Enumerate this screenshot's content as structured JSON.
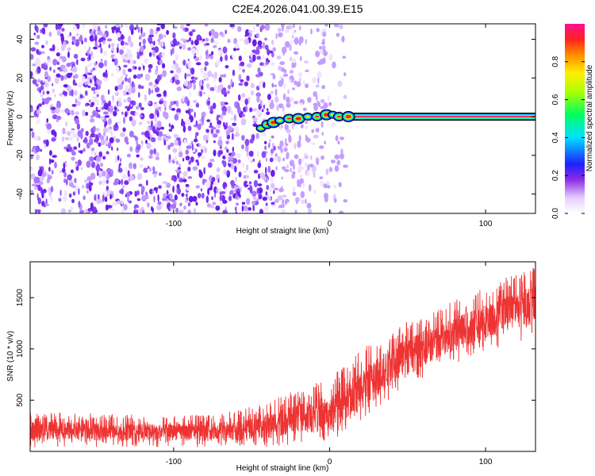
{
  "figure_title": "C2E4.2026.041.00.39.E15",
  "chart_data": [
    {
      "type": "heatmap",
      "title": "C2E4.2026.041.00.39.E15",
      "xlabel": "Height of straight line (km)",
      "ylabel": "Frequency (Hz)",
      "xlim": [
        -192,
        132
      ],
      "ylim": [
        -50,
        48
      ],
      "xticks": [
        -100,
        0,
        100
      ],
      "xtick_labels": [
        "-100",
        "0",
        "100"
      ],
      "yticks": [
        -40,
        -20,
        0,
        20,
        40
      ],
      "ytick_labels": [
        "-40",
        "-20",
        "0",
        "20",
        "40"
      ],
      "colorbar": {
        "label": "Normalized spectral amplitude",
        "range": [
          0,
          1
        ],
        "ticks": [
          0.0,
          0.2,
          0.4,
          0.6,
          0.8
        ],
        "tick_labels": [
          "0.0",
          "0.2",
          "0.4",
          "0.6",
          "0.8"
        ]
      },
      "features": {
        "noise_region_x": [
          -192,
          -35
        ],
        "noise_fade_x": [
          -35,
          12
        ],
        "noise_amplitude": [
          0.1,
          0.4
        ],
        "signal_band_x": [
          -45,
          132
        ],
        "signal_center_freq": 0,
        "signal_amplitude": 0.95,
        "signal_onset_points": [
          {
            "x": -44,
            "y": -6
          },
          {
            "x": -40,
            "y": -4
          },
          {
            "x": -36,
            "y": -3
          },
          {
            "x": -32,
            "y": -2
          },
          {
            "x": -26,
            "y": -1
          },
          {
            "x": -20,
            "y": -1
          },
          {
            "x": -14,
            "y": 0
          },
          {
            "x": -8,
            "y": 0
          },
          {
            "x": -2,
            "y": 1
          },
          {
            "x": 2,
            "y": 1
          },
          {
            "x": 6,
            "y": 0
          },
          {
            "x": 12,
            "y": 0
          }
        ]
      }
    },
    {
      "type": "line",
      "xlabel": "Height of straight line (km)",
      "ylabel": "SNR (10 * v/v)",
      "xlim": [
        -192,
        132
      ],
      "ylim": [
        0,
        1850
      ],
      "xticks": [
        -100,
        0,
        100
      ],
      "xtick_labels": [
        "-100",
        "0",
        "100"
      ],
      "yticks": [
        500,
        1000,
        1500
      ],
      "ytick_labels": [
        "500",
        "1000",
        "1500"
      ],
      "series": [
        {
          "name": "SNR",
          "color": "#ee3333",
          "envelope": {
            "x": [
              -192,
              -150,
              -100,
              -60,
              -40,
              -20,
              0,
              10,
              20,
              40,
              60,
              80,
              100,
              120,
              132
            ],
            "lo": [
              40,
              40,
              40,
              40,
              45,
              60,
              90,
              160,
              260,
              520,
              720,
              860,
              960,
              1060,
              1100
            ],
            "hi": [
              360,
              340,
              320,
              360,
              450,
              560,
              660,
              780,
              930,
              1150,
              1290,
              1420,
              1550,
              1680,
              1760
            ]
          }
        }
      ]
    }
  ],
  "colors": {
    "noise_purple": "#7a2cf0",
    "signal_line": "#ee3333",
    "axis": "#000000"
  }
}
